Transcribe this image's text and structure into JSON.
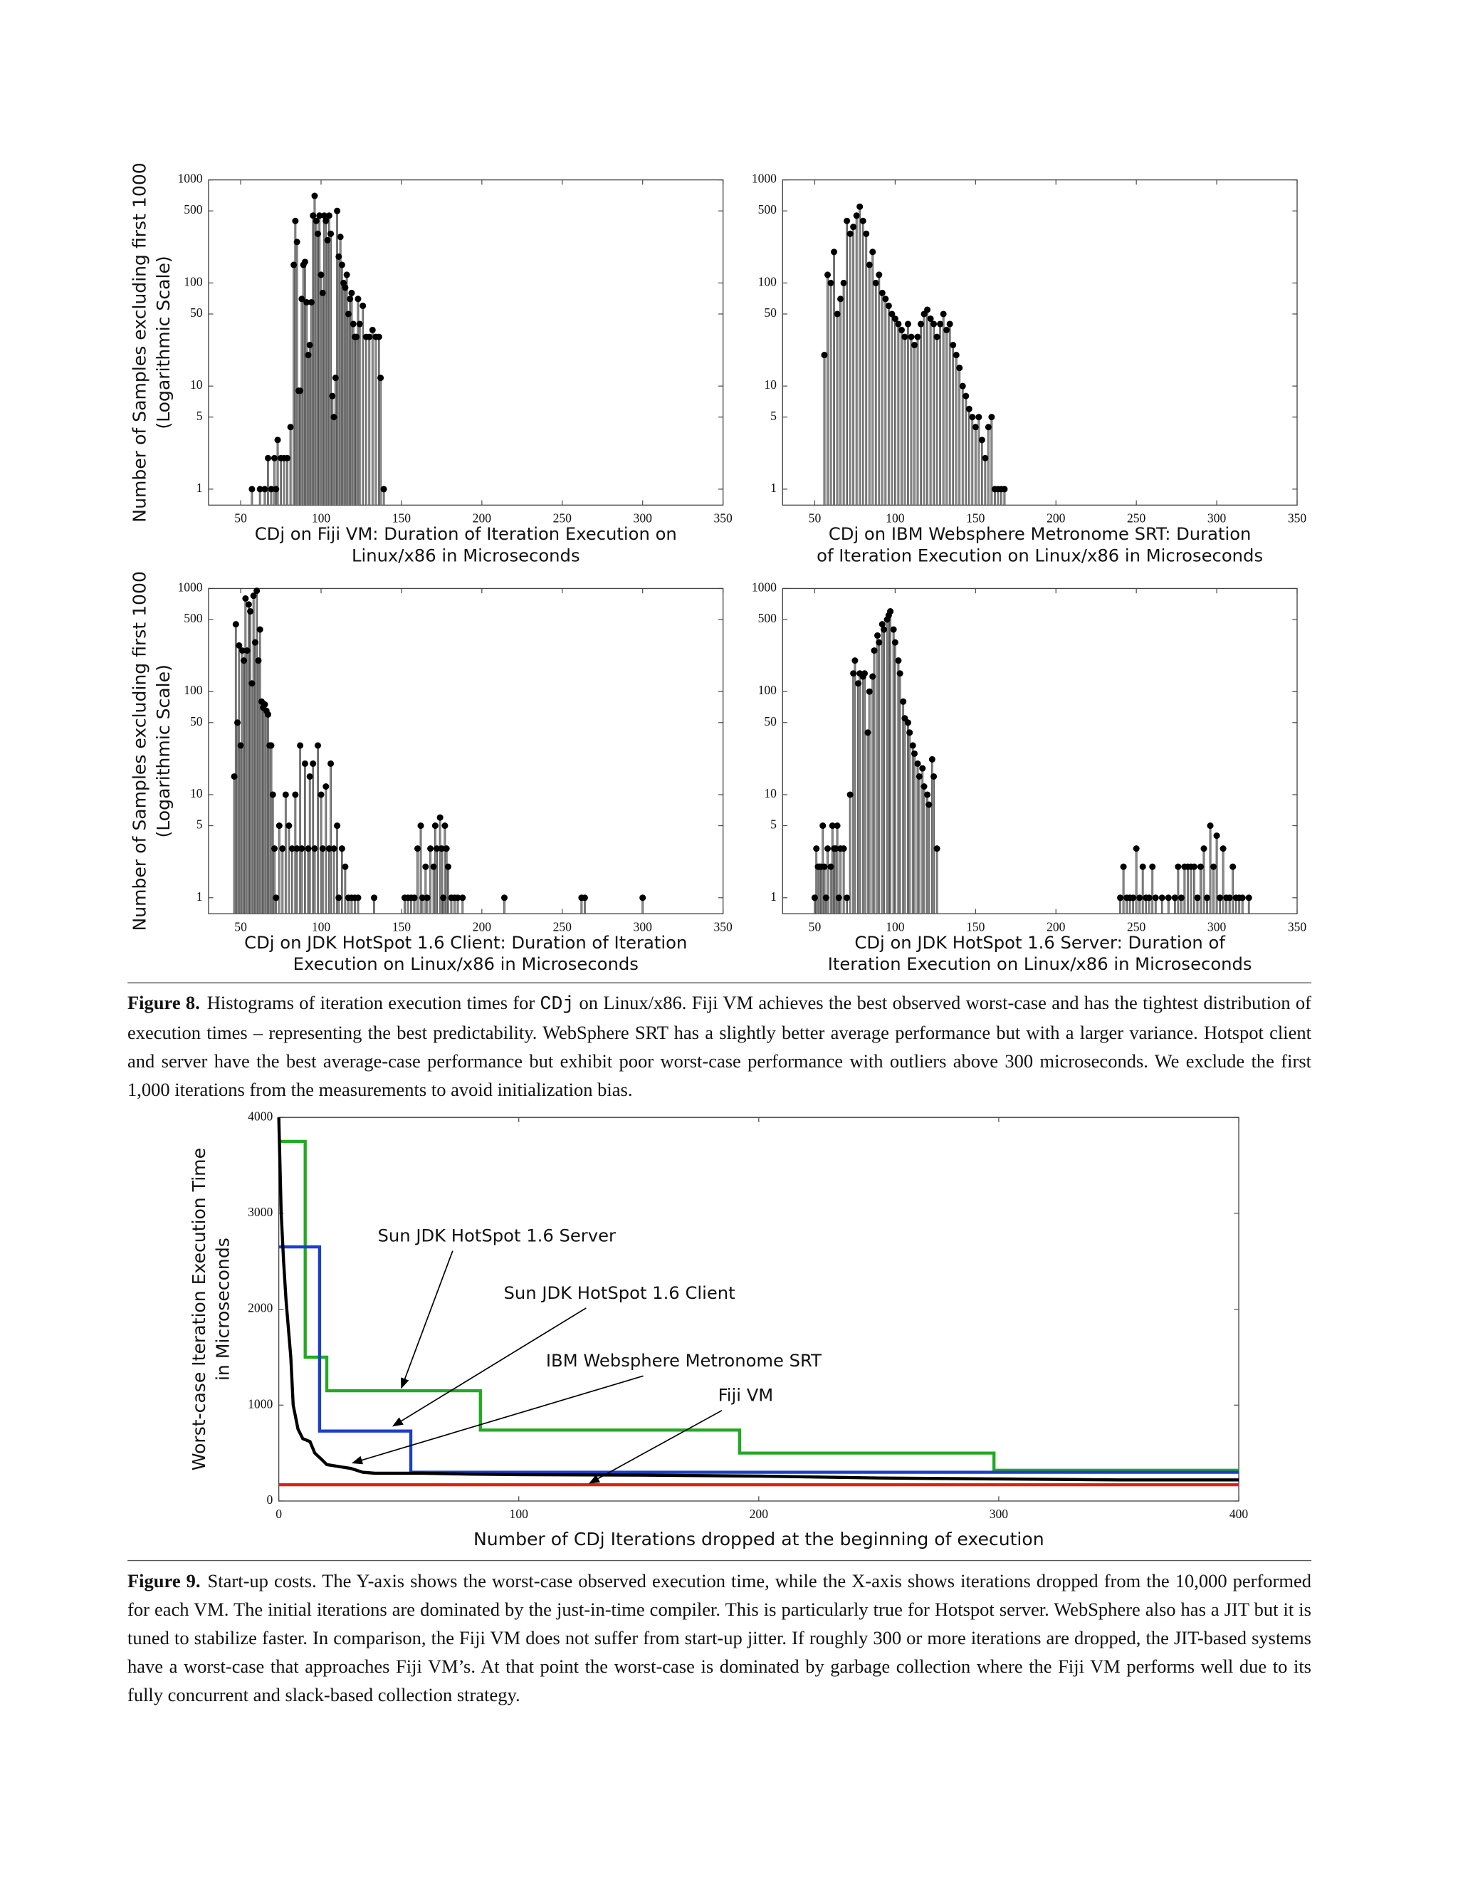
{
  "chart_data": [
    {
      "type": "stem",
      "xlabel": [
        "CDj on Fiji VM: Duration of Iteration Execution on",
        "Linux/x86 in Microseconds"
      ],
      "ylabel": [
        "Number of Samples excluding first 1000",
        "(Logarithmic Scale)"
      ],
      "x": [
        57,
        62,
        65,
        67,
        69,
        71,
        72,
        73,
        75,
        77,
        79,
        81,
        83,
        84,
        85,
        86,
        87,
        88,
        89,
        90,
        91,
        92,
        93,
        94,
        95,
        96,
        97,
        98,
        99,
        100,
        101,
        102,
        103,
        104,
        105,
        106,
        107,
        108,
        109,
        110,
        111,
        112,
        113,
        114,
        115,
        116,
        117,
        118,
        119,
        120,
        121,
        122,
        123,
        124,
        126,
        128,
        130,
        132,
        134,
        136,
        137,
        139
      ],
      "values": [
        1,
        1,
        1,
        2,
        1,
        2,
        1,
        3,
        2,
        2,
        2,
        4,
        150,
        400,
        250,
        9,
        9,
        70,
        150,
        160,
        65,
        20,
        25,
        65,
        450,
        700,
        400,
        300,
        450,
        120,
        80,
        450,
        400,
        260,
        450,
        300,
        8,
        5,
        12,
        500,
        180,
        280,
        150,
        100,
        90,
        120,
        50,
        70,
        80,
        40,
        30,
        30,
        70,
        40,
        60,
        30,
        30,
        35,
        30,
        30,
        12,
        1
      ],
      "xlim": [
        30,
        350
      ],
      "ylim": [
        0.7,
        1000
      ],
      "log_y": true,
      "xticks": [
        50,
        100,
        150,
        200,
        250,
        300,
        350
      ],
      "yticks": [
        1,
        5,
        10,
        50,
        100,
        500,
        1000
      ],
      "color": "#8c8c8c",
      "marker_color": "#000000"
    },
    {
      "type": "stem",
      "xlabel": [
        "CDj on IBM Websphere Metronome SRT: Duration",
        "of Iteration Execution on Linux/x86 in Microseconds"
      ],
      "x": [
        56,
        58,
        60,
        62,
        64,
        66,
        68,
        70,
        72,
        74,
        76,
        78,
        80,
        82,
        84,
        86,
        88,
        90,
        92,
        94,
        96,
        98,
        100,
        102,
        104,
        106,
        108,
        110,
        112,
        114,
        116,
        118,
        120,
        122,
        124,
        126,
        128,
        130,
        132,
        134,
        136,
        138,
        140,
        142,
        144,
        146,
        148,
        150,
        152,
        154,
        156,
        158,
        160,
        162,
        164,
        166,
        168
      ],
      "values": [
        20,
        120,
        100,
        200,
        50,
        70,
        100,
        400,
        300,
        350,
        450,
        550,
        400,
        300,
        150,
        200,
        100,
        120,
        80,
        70,
        60,
        50,
        45,
        40,
        35,
        30,
        40,
        30,
        25,
        30,
        40,
        50,
        55,
        45,
        40,
        30,
        40,
        50,
        35,
        40,
        25,
        20,
        15,
        10,
        8,
        6,
        5,
        4,
        5,
        3,
        2,
        4,
        5,
        1,
        1,
        1,
        1
      ],
      "xlim": [
        30,
        350
      ],
      "ylim": [
        0.7,
        1000
      ],
      "log_y": true,
      "xticks": [
        50,
        100,
        150,
        200,
        250,
        300,
        350
      ],
      "yticks": [
        1,
        5,
        10,
        50,
        100,
        500,
        1000
      ],
      "color": "#8c8c8c",
      "marker_color": "#000000"
    },
    {
      "type": "stem",
      "xlabel": [
        "CDj on JDK HotSpot 1.6 Client: Duration of Iteration",
        "Execution on Linux/x86 in Microseconds"
      ],
      "ylabel": [
        "Number of Samples excluding first 1000",
        "(Logarithmic Scale)"
      ],
      "x": [
        46,
        47,
        48,
        49,
        50,
        51,
        52,
        53,
        54,
        55,
        56,
        57,
        58,
        59,
        60,
        61,
        62,
        63,
        64,
        65,
        66,
        67,
        68,
        69,
        70,
        71,
        72,
        74,
        76,
        78,
        80,
        82,
        84,
        85,
        87,
        88,
        90,
        92,
        93,
        95,
        96,
        98,
        100,
        101,
        103,
        105,
        106,
        108,
        110,
        111,
        113,
        115,
        117,
        119,
        121,
        123,
        133,
        152,
        154,
        156,
        158,
        160,
        162,
        163,
        165,
        166,
        168,
        170,
        171,
        172,
        174,
        175,
        176,
        177,
        178,
        179,
        181,
        183,
        185,
        188,
        214,
        262,
        264,
        300
      ],
      "values": [
        15,
        450,
        50,
        280,
        30,
        250,
        200,
        800,
        250,
        700,
        600,
        120,
        850,
        300,
        950,
        200,
        400,
        80,
        70,
        75,
        65,
        60,
        30,
        30,
        10,
        3,
        1,
        5,
        3,
        10,
        5,
        3,
        10,
        3,
        30,
        3,
        20,
        3,
        15,
        20,
        3,
        30,
        10,
        3,
        12,
        3,
        20,
        3,
        5,
        1,
        3,
        2,
        1,
        1,
        1,
        1,
        1,
        1,
        1,
        1,
        1,
        3,
        5,
        1,
        2,
        1,
        3,
        2,
        5,
        3,
        6,
        3,
        1,
        5,
        3,
        2,
        1,
        1,
        1,
        1,
        1,
        1,
        1,
        1
      ],
      "xlim": [
        30,
        350
      ],
      "ylim": [
        0.7,
        1000
      ],
      "log_y": true,
      "xticks": [
        50,
        100,
        150,
        200,
        250,
        300,
        350
      ],
      "yticks": [
        1,
        5,
        10,
        50,
        100,
        500,
        1000
      ],
      "color": "#8c8c8c",
      "marker_color": "#000000"
    },
    {
      "type": "stem",
      "xlabel": [
        "CDj on JDK HotSpot 1.6 Server: Duration of",
        "Iteration Execution on Linux/x86 in Microseconds"
      ],
      "x": [
        50,
        51,
        52,
        53,
        54,
        55,
        56,
        57,
        58,
        60,
        61,
        62,
        63,
        64,
        65,
        66,
        68,
        70,
        72,
        74,
        75,
        77,
        78,
        80,
        81,
        83,
        84,
        86,
        87,
        89,
        90,
        92,
        93,
        95,
        96,
        97,
        99,
        100,
        102,
        103,
        105,
        106,
        108,
        109,
        111,
        112,
        114,
        115,
        117,
        118,
        120,
        121,
        123,
        124,
        126,
        240,
        242,
        244,
        246,
        248,
        250,
        252,
        254,
        256,
        258,
        260,
        262,
        266,
        270,
        274,
        276,
        278,
        280,
        282,
        284,
        286,
        288,
        290,
        292,
        294,
        296,
        298,
        300,
        302,
        304,
        306,
        308,
        310,
        312,
        314,
        316,
        320
      ],
      "values": [
        1,
        3,
        2,
        2,
        2,
        5,
        2,
        1,
        3,
        2,
        5,
        3,
        3,
        5,
        1,
        3,
        3,
        1,
        10,
        150,
        200,
        120,
        150,
        140,
        150,
        40,
        100,
        140,
        250,
        350,
        300,
        450,
        400,
        500,
        550,
        600,
        400,
        300,
        200,
        150,
        80,
        55,
        50,
        40,
        30,
        25,
        20,
        15,
        18,
        12,
        10,
        8,
        22,
        15,
        3,
        1,
        2,
        1,
        1,
        1,
        3,
        1,
        2,
        1,
        1,
        2,
        1,
        1,
        1,
        1,
        2,
        1,
        2,
        2,
        2,
        2,
        1,
        2,
        3,
        1,
        5,
        2,
        4,
        1,
        3,
        1,
        1,
        2,
        1,
        1,
        1,
        1
      ],
      "xlim": [
        30,
        350
      ],
      "ylim": [
        0.7,
        1000
      ],
      "log_y": true,
      "xticks": [
        50,
        100,
        150,
        200,
        250,
        300,
        350
      ],
      "yticks": [
        1,
        5,
        10,
        50,
        100,
        500,
        1000
      ],
      "color": "#8c8c8c",
      "marker_color": "#000000"
    },
    {
      "type": "line",
      "xlabel": "Number of CDj Iterations dropped at the beginning of execution",
      "ylabel": [
        "Worst-case Iteration Execution Time",
        "in Microseconds"
      ],
      "xlim": [
        0,
        400
      ],
      "ylim": [
        0,
        4000
      ],
      "xticks": [
        0,
        100,
        200,
        300,
        400
      ],
      "yticks": [
        0,
        1000,
        2000,
        3000,
        4000
      ],
      "series": [
        {
          "name": "Sun JDK HotSpot 1.6 Server",
          "color": "#22aa22",
          "x": [
            0,
            11,
            11,
            20,
            20,
            84,
            84,
            192,
            192,
            298,
            298,
            400
          ],
          "values": [
            3750,
            3750,
            1500,
            1500,
            1150,
            1150,
            740,
            740,
            500,
            500,
            320,
            320
          ]
        },
        {
          "name": "Sun JDK HotSpot 1.6 Client",
          "color": "#1a3fcc",
          "x": [
            0,
            17,
            17,
            55,
            55,
            400
          ],
          "values": [
            2650,
            2650,
            730,
            730,
            300,
            300
          ]
        },
        {
          "name": "IBM Websphere Metronome SRT",
          "color": "#000000",
          "x": [
            0,
            1,
            2,
            3,
            4,
            5,
            6,
            8,
            10,
            13,
            15,
            18,
            20,
            25,
            30,
            35,
            40,
            60,
            80,
            100,
            150,
            200,
            250,
            300,
            350,
            400
          ],
          "values": [
            4000,
            3000,
            2500,
            2100,
            1800,
            1500,
            1000,
            750,
            650,
            620,
            500,
            430,
            380,
            360,
            340,
            300,
            290,
            290,
            280,
            275,
            270,
            260,
            240,
            230,
            220,
            220
          ]
        },
        {
          "name": "Fiji VM",
          "color": "#dd2211",
          "x": [
            0,
            400
          ],
          "values": [
            170,
            170
          ]
        }
      ]
    }
  ],
  "figure8_caption": {
    "label": "Figure 8.",
    "parts": [
      "Histograms of iteration execution times for ",
      "CDj",
      " on Linux/x86. Fiji VM achieves the best observed worst-case and has the tightest distribution of execution times – representing the best predictability. WebSphere SRT has a slightly better average performance but with a larger variance. Hotspot client and server have the best average-case performance but exhibit poor worst-case performance with outliers above 300 microseconds. We exclude the first 1,000 iterations from the measurements to avoid initialization bias."
    ]
  },
  "figure9_caption": {
    "label": "Figure 9.",
    "text": "Start-up costs. The Y-axis shows the worst-case observed execution time, while the X-axis shows iterations dropped from the 10,000 performed for each VM. The initial iterations are dominated by the just-in-time compiler. This is particularly true for Hotspot server. WebSphere also has a JIT but it is tuned to stabilize faster. In comparison, the Fiji VM does not suffer from start-up jitter. If roughly 300 or more iterations are dropped, the JIT-based systems have a worst-case that approaches Fiji VM’s. At that point the worst-case is dominated by garbage collection where the Fiji VM performs well due to its fully concurrent and slack-based collection strategy."
  }
}
